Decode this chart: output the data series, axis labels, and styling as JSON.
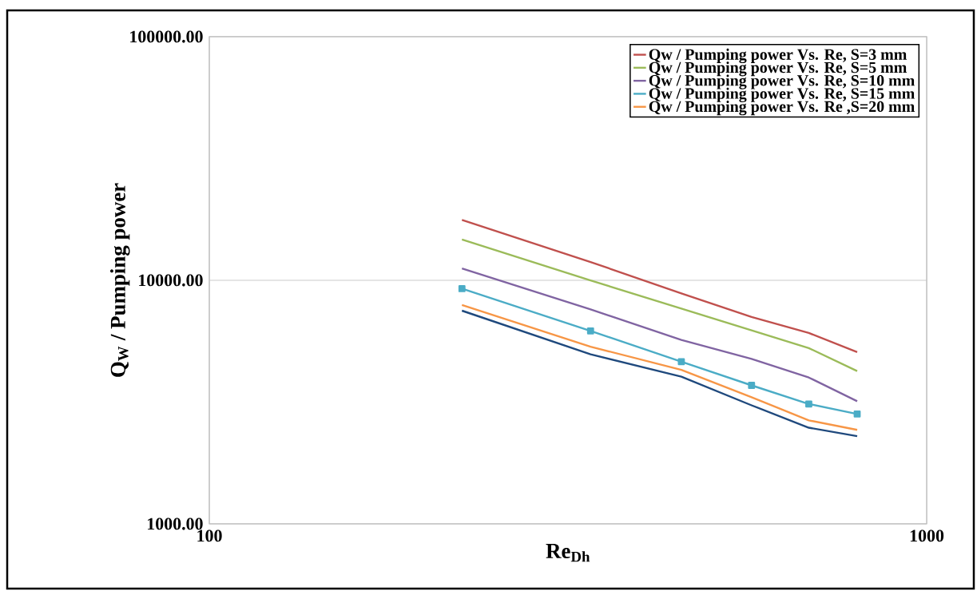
{
  "chart_data": {
    "type": "line",
    "xlabel": "Re$_{Dh}$",
    "ylabel": "Q$_{W}$ / Pumping power",
    "x": [
      225,
      340,
      455,
      570,
      685,
      800
    ],
    "series": [
      {
        "name": "Qw / Pumping power Vs. Re, S=3 mm",
        "color": "#c0504d",
        "values": [
          17690,
          11890,
          8840,
          7070,
          6080,
          5075
        ]
      },
      {
        "name": "Qw / Pumping power Vs. Re, S=5 mm",
        "color": "#9bbb59",
        "values": [
          14700,
          9990,
          7660,
          6230,
          5270,
          4240
        ]
      },
      {
        "name": "Qw / Pumping power Vs. Re, S=10 mm",
        "color": "#8064a2",
        "values": [
          11190,
          7600,
          5690,
          4755,
          3990,
          3187
        ]
      },
      {
        "name": "Qw / Pumping power Vs. Re, S=15 mm",
        "color": "#4bacc6",
        "marker": "square",
        "values": [
          9240,
          6200,
          4633,
          3705,
          3108,
          2826
        ]
      },
      {
        "name": "Qw / Pumping power Vs. Re ,S=20 mm",
        "color": "#f79646",
        "values": [
          7920,
          5340,
          4290,
          3313,
          2661,
          2432
        ]
      },
      {
        "color": "#1f497d",
        "values": [
          7505,
          4970,
          4020,
          3068,
          2483,
          2292
        ]
      }
    ],
    "xlim": [
      100,
      1000
    ],
    "ylim": [
      1000,
      100000
    ],
    "xticks": [
      100,
      1000
    ],
    "yticks": [
      {
        "value": 1000,
        "label": "1000.00"
      },
      {
        "value": 10000,
        "label": "10000.00"
      },
      {
        "value": 100000,
        "label": "100000.00"
      }
    ],
    "log": "xy",
    "grid": true,
    "legend": "top right",
    "marker": "none",
    "line_style": "solid"
  }
}
